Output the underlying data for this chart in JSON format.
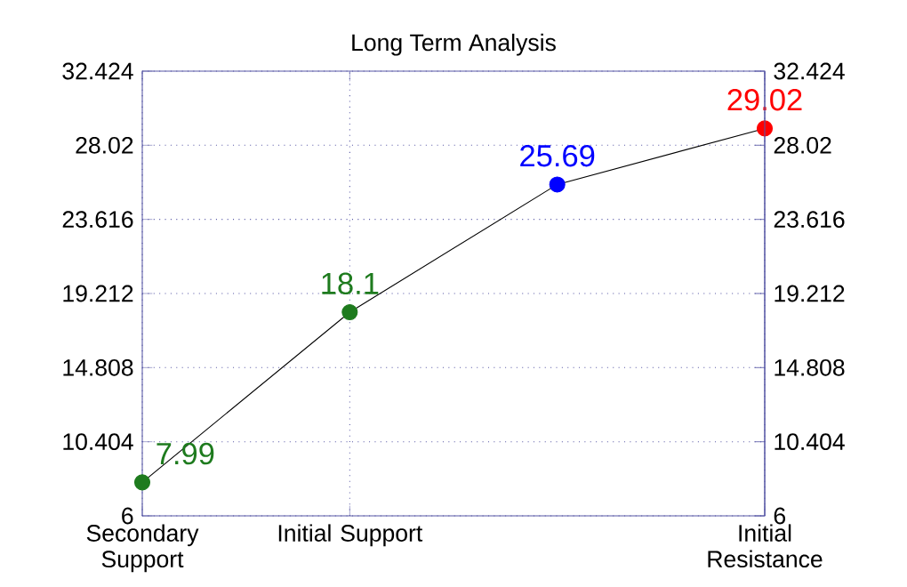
{
  "chart_data": {
    "type": "line",
    "title": "Long Term Analysis",
    "categories": [
      "Secondary Support",
      "Initial Support",
      null,
      "Initial Resistance"
    ],
    "ylim": [
      6,
      32.424
    ],
    "yticks": [
      6,
      10.404,
      14.808,
      19.212,
      23.616,
      28.02,
      32.424
    ],
    "y2lim": [
      6,
      32.424
    ],
    "y2ticks": [
      6,
      10.404,
      14.808,
      19.212,
      23.616,
      28.02,
      32.424
    ],
    "grid": true,
    "marker": "circle",
    "line_style": "solid",
    "data_labels": true,
    "series": [
      {
        "color": "#000000",
        "values": [
          7.99,
          18.1,
          25.69,
          29.02
        ],
        "colors": [
          "#1e7b1e",
          "#1e7b1e",
          "#0000ff",
          "#ff0000"
        ]
      }
    ]
  }
}
